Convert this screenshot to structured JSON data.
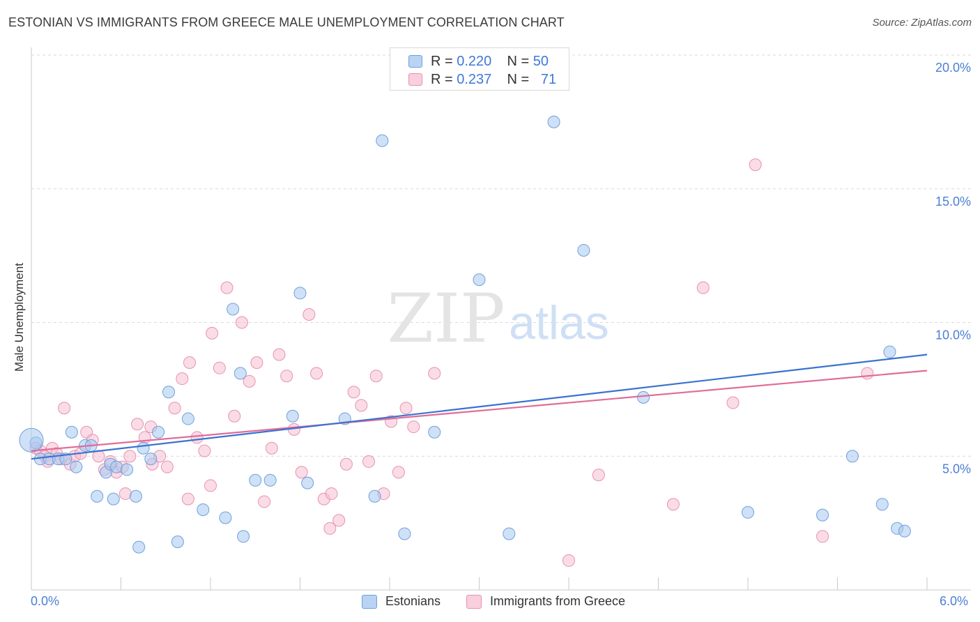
{
  "header": {
    "title": "ESTONIAN VS IMMIGRANTS FROM GREECE MALE UNEMPLOYMENT CORRELATION CHART",
    "source": "Source: ZipAtlas.com"
  },
  "watermark": {
    "zip": "ZIP",
    "atlas": "atlas"
  },
  "legend_top": {
    "rows": [
      {
        "r_label": "R = ",
        "r_value": "0.220",
        "n_label": "N = ",
        "n_value": "50"
      },
      {
        "r_label": "R = ",
        "r_value": "0.237",
        "n_label": "N = ",
        "n_value": "71"
      }
    ]
  },
  "legend_bottom": {
    "items": [
      "Estonians",
      "Immigrants from Greece"
    ]
  },
  "colors": {
    "blue_fill": "#a8c8f0",
    "blue_stroke": "#6f9fdc",
    "blue_line": "#3a72d0",
    "pink_fill": "#f6bfd1",
    "pink_stroke": "#e891b0",
    "pink_line": "#e06c98",
    "grid": "#d9d9d9",
    "tick_text": "#4a7fd4"
  },
  "chart_data": {
    "type": "scatter",
    "title": "ESTONIAN VS IMMIGRANTS FROM GREECE MALE UNEMPLOYMENT CORRELATION CHART",
    "xlabel": "",
    "ylabel": "Male Unemployment",
    "xlim": [
      0,
      6
    ],
    "ylim": [
      0,
      20
    ],
    "x_tick_labels": [
      "0.0%",
      "6.0%"
    ],
    "y_ticks": [
      5,
      10,
      15,
      20
    ],
    "y_tick_labels": [
      "5.0%",
      "10.0%",
      "15.0%",
      "20.0%"
    ],
    "grid": "horizontal dashed",
    "legend_position": "top-center and bottom",
    "series": [
      {
        "name": "Estonians",
        "color": "#a8c8f0",
        "r": 0.22,
        "n": 50,
        "trend": {
          "x": [
            0,
            6
          ],
          "y": [
            4.9,
            8.8
          ]
        },
        "points": [
          [
            0.03,
            5.5
          ],
          [
            0.06,
            4.9
          ],
          [
            0.12,
            4.9
          ],
          [
            0.18,
            4.9
          ],
          [
            0.23,
            4.9
          ],
          [
            0.27,
            5.9
          ],
          [
            0.3,
            4.6
          ],
          [
            0.36,
            5.4
          ],
          [
            0.4,
            5.4
          ],
          [
            0.44,
            3.5
          ],
          [
            0.5,
            4.4
          ],
          [
            0.53,
            4.7
          ],
          [
            0.57,
            4.6
          ],
          [
            0.64,
            4.5
          ],
          [
            0.7,
            3.5
          ],
          [
            0.75,
            5.3
          ],
          [
            0.8,
            4.9
          ],
          [
            0.85,
            5.9
          ],
          [
            0.92,
            7.4
          ],
          [
            1.05,
            6.4
          ],
          [
            1.15,
            3.0
          ],
          [
            1.3,
            2.7
          ],
          [
            1.35,
            10.5
          ],
          [
            1.42,
            2.0
          ],
          [
            1.5,
            4.1
          ],
          [
            1.6,
            4.1
          ],
          [
            1.75,
            6.5
          ],
          [
            1.8,
            11.1
          ],
          [
            1.85,
            4.0
          ],
          [
            2.1,
            6.4
          ],
          [
            2.3,
            3.5
          ],
          [
            2.35,
            16.8
          ],
          [
            2.5,
            2.1
          ],
          [
            2.7,
            5.9
          ],
          [
            3.0,
            11.6
          ],
          [
            3.2,
            2.1
          ],
          [
            3.5,
            17.5
          ],
          [
            3.7,
            12.7
          ],
          [
            4.1,
            7.2
          ],
          [
            4.8,
            2.9
          ],
          [
            5.3,
            2.8
          ],
          [
            5.5,
            5.0
          ],
          [
            5.7,
            3.2
          ],
          [
            5.75,
            8.9
          ],
          [
            5.8,
            2.3
          ],
          [
            5.85,
            2.2
          ],
          [
            0.72,
            1.6
          ],
          [
            0.98,
            1.8
          ],
          [
            0.55,
            3.4
          ],
          [
            1.4,
            8.1
          ]
        ]
      },
      {
        "name": "Immigrants from Greece",
        "color": "#f6bfd1",
        "r": 0.237,
        "n": 71,
        "trend": {
          "x": [
            0,
            6
          ],
          "y": [
            5.2,
            8.2
          ]
        },
        "points": [
          [
            0.03,
            5.3
          ],
          [
            0.06,
            5.2
          ],
          [
            0.09,
            5.0
          ],
          [
            0.11,
            4.8
          ],
          [
            0.14,
            5.3
          ],
          [
            0.17,
            5.1
          ],
          [
            0.2,
            4.9
          ],
          [
            0.22,
            6.8
          ],
          [
            0.26,
            4.7
          ],
          [
            0.29,
            5.0
          ],
          [
            0.33,
            5.1
          ],
          [
            0.37,
            5.9
          ],
          [
            0.41,
            5.6
          ],
          [
            0.45,
            5.0
          ],
          [
            0.49,
            4.5
          ],
          [
            0.53,
            4.8
          ],
          [
            0.57,
            4.4
          ],
          [
            0.61,
            4.6
          ],
          [
            0.66,
            5.0
          ],
          [
            0.71,
            6.2
          ],
          [
            0.76,
            5.7
          ],
          [
            0.81,
            4.7
          ],
          [
            0.86,
            5.0
          ],
          [
            0.91,
            4.6
          ],
          [
            0.96,
            6.8
          ],
          [
            1.01,
            7.9
          ],
          [
            1.06,
            8.5
          ],
          [
            1.11,
            5.7
          ],
          [
            1.16,
            5.2
          ],
          [
            1.21,
            9.6
          ],
          [
            1.26,
            8.3
          ],
          [
            1.31,
            11.3
          ],
          [
            1.36,
            6.5
          ],
          [
            1.41,
            10.0
          ],
          [
            1.46,
            7.8
          ],
          [
            1.51,
            8.5
          ],
          [
            1.56,
            3.3
          ],
          [
            1.61,
            5.3
          ],
          [
            1.66,
            8.8
          ],
          [
            1.71,
            8.0
          ],
          [
            1.76,
            6.0
          ],
          [
            1.81,
            4.4
          ],
          [
            1.86,
            10.3
          ],
          [
            1.91,
            8.1
          ],
          [
            1.96,
            3.4
          ],
          [
            2.01,
            3.6
          ],
          [
            2.06,
            2.6
          ],
          [
            2.11,
            4.7
          ],
          [
            2.16,
            7.4
          ],
          [
            2.21,
            6.9
          ],
          [
            2.26,
            4.8
          ],
          [
            2.31,
            8.0
          ],
          [
            2.36,
            3.6
          ],
          [
            2.41,
            6.3
          ],
          [
            2.46,
            4.4
          ],
          [
            2.51,
            6.8
          ],
          [
            2.56,
            6.1
          ],
          [
            3.8,
            4.3
          ],
          [
            3.6,
            1.1
          ],
          [
            4.3,
            3.2
          ],
          [
            4.5,
            11.3
          ],
          [
            4.7,
            7.0
          ],
          [
            4.85,
            15.9
          ],
          [
            5.3,
            2.0
          ],
          [
            5.6,
            8.1
          ],
          [
            2.7,
            8.1
          ],
          [
            1.05,
            3.4
          ],
          [
            1.2,
            3.9
          ],
          [
            0.63,
            3.6
          ],
          [
            0.8,
            6.1
          ],
          [
            2.0,
            2.3
          ]
        ]
      }
    ]
  }
}
